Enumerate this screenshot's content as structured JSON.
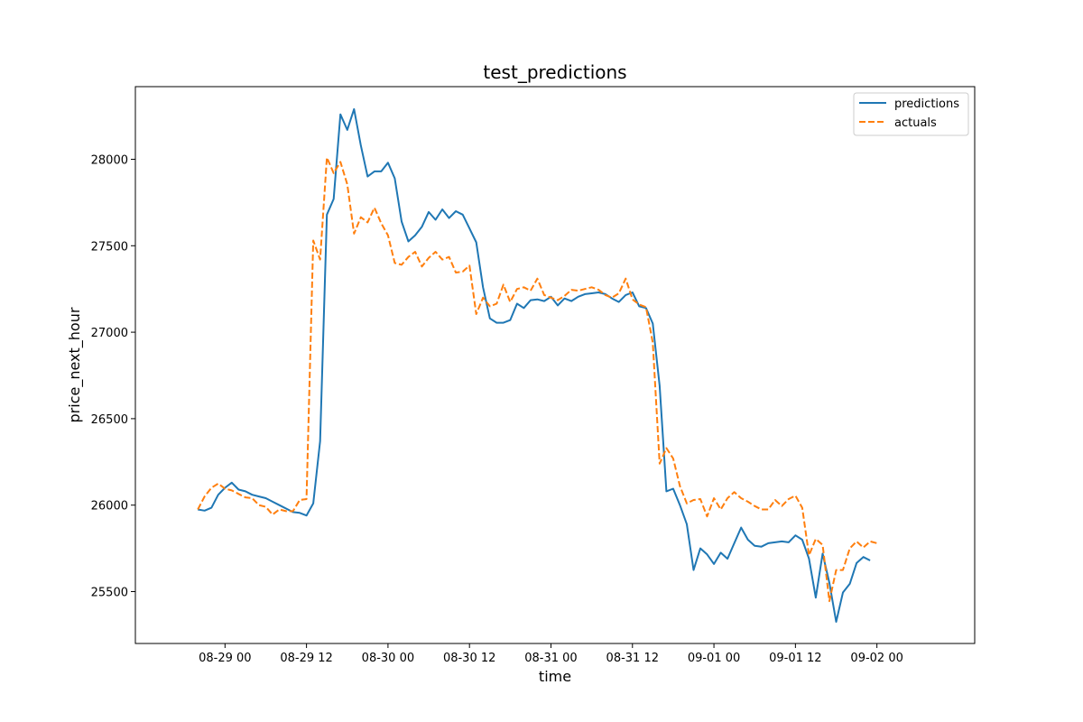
{
  "chart_data": {
    "type": "line",
    "title": "test_predictions",
    "xlabel": "time",
    "ylabel": "price_next_hour",
    "x_range_hours": [
      -13.2,
      110.4
    ],
    "ylim": [
      25200,
      28420
    ],
    "x_ticks": [
      {
        "hours": 0,
        "label": "08-29 00"
      },
      {
        "hours": 12,
        "label": "08-29 12"
      },
      {
        "hours": 24,
        "label": "08-30 00"
      },
      {
        "hours": 36,
        "label": "08-30 12"
      },
      {
        "hours": 48,
        "label": "08-31 00"
      },
      {
        "hours": 60,
        "label": "08-31 12"
      },
      {
        "hours": 72,
        "label": "09-01 00"
      },
      {
        "hours": 84,
        "label": "09-01 12"
      },
      {
        "hours": 96,
        "label": "09-02 00"
      }
    ],
    "y_ticks": [
      25500,
      26000,
      26500,
      27000,
      27500,
      28000
    ],
    "grid": false,
    "legend_position": "upper-right",
    "series": [
      {
        "name": "predictions",
        "color": "#1f77b4",
        "style": "solid",
        "points": [
          [
            -4,
            25975
          ],
          [
            -3,
            25968
          ],
          [
            -2,
            25985
          ],
          [
            -1,
            26060
          ],
          [
            0,
            26100
          ],
          [
            1,
            26130
          ],
          [
            2,
            26090
          ],
          [
            3,
            26080
          ],
          [
            4,
            26060
          ],
          [
            5,
            26050
          ],
          [
            6,
            26040
          ],
          [
            7,
            26020
          ],
          [
            8,
            26000
          ],
          [
            9,
            25980
          ],
          [
            10,
            25960
          ],
          [
            11,
            25955
          ],
          [
            12,
            25940
          ],
          [
            13,
            26010
          ],
          [
            14,
            26370
          ],
          [
            15,
            27680
          ],
          [
            16,
            27770
          ],
          [
            17,
            28260
          ],
          [
            18,
            28170
          ],
          [
            19,
            28290
          ],
          [
            20,
            28080
          ],
          [
            21,
            27900
          ],
          [
            22,
            27930
          ],
          [
            23,
            27930
          ],
          [
            24,
            27980
          ],
          [
            25,
            27890
          ],
          [
            26,
            27640
          ],
          [
            27,
            27525
          ],
          [
            28,
            27560
          ],
          [
            29,
            27610
          ],
          [
            30,
            27695
          ],
          [
            31,
            27650
          ],
          [
            32,
            27710
          ],
          [
            33,
            27660
          ],
          [
            34,
            27700
          ],
          [
            35,
            27680
          ],
          [
            36,
            27600
          ],
          [
            37,
            27520
          ],
          [
            38,
            27260
          ],
          [
            39,
            27080
          ],
          [
            40,
            27055
          ],
          [
            41,
            27055
          ],
          [
            42,
            27070
          ],
          [
            43,
            27165
          ],
          [
            44,
            27140
          ],
          [
            45,
            27185
          ],
          [
            46,
            27190
          ],
          [
            47,
            27180
          ],
          [
            48,
            27205
          ],
          [
            49,
            27155
          ],
          [
            50,
            27195
          ],
          [
            51,
            27180
          ],
          [
            52,
            27205
          ],
          [
            53,
            27220
          ],
          [
            54,
            27225
          ],
          [
            55,
            27230
          ],
          [
            56,
            27220
          ],
          [
            57,
            27195
          ],
          [
            58,
            27175
          ],
          [
            59,
            27215
          ],
          [
            60,
            27230
          ],
          [
            61,
            27150
          ],
          [
            62,
            27140
          ],
          [
            63,
            27050
          ],
          [
            64,
            26690
          ],
          [
            65,
            26080
          ],
          [
            66,
            26095
          ],
          [
            67,
            26000
          ],
          [
            68,
            25890
          ],
          [
            69,
            25625
          ],
          [
            70,
            25750
          ],
          [
            71,
            25715
          ],
          [
            72,
            25660
          ],
          [
            73,
            25725
          ],
          [
            74,
            25690
          ],
          [
            75,
            25780
          ],
          [
            76,
            25870
          ],
          [
            77,
            25800
          ],
          [
            78,
            25765
          ],
          [
            79,
            25760
          ],
          [
            80,
            25780
          ],
          [
            81,
            25785
          ],
          [
            82,
            25790
          ],
          [
            83,
            25785
          ],
          [
            84,
            25825
          ],
          [
            85,
            25800
          ],
          [
            86,
            25690
          ],
          [
            87,
            25465
          ],
          [
            88,
            25720
          ],
          [
            89,
            25550
          ],
          [
            90,
            25325
          ],
          [
            91,
            25495
          ],
          [
            92,
            25545
          ],
          [
            93,
            25665
          ],
          [
            94,
            25700
          ],
          [
            95,
            25680
          ]
        ]
      },
      {
        "name": "actuals",
        "color": "#ff7f0e",
        "style": "dashed",
        "points": [
          [
            -4,
            25975
          ],
          [
            -3,
            26050
          ],
          [
            -2,
            26100
          ],
          [
            -1,
            26125
          ],
          [
            0,
            26095
          ],
          [
            1,
            26085
          ],
          [
            2,
            26065
          ],
          [
            3,
            26045
          ],
          [
            4,
            26040
          ],
          [
            5,
            26000
          ],
          [
            6,
            25990
          ],
          [
            7,
            25945
          ],
          [
            8,
            25975
          ],
          [
            9,
            25965
          ],
          [
            10,
            25965
          ],
          [
            11,
            26030
          ],
          [
            12,
            26035
          ],
          [
            13,
            27530
          ],
          [
            14,
            27420
          ],
          [
            15,
            28010
          ],
          [
            16,
            27920
          ],
          [
            17,
            27985
          ],
          [
            18,
            27855
          ],
          [
            19,
            27570
          ],
          [
            20,
            27665
          ],
          [
            21,
            27635
          ],
          [
            22,
            27720
          ],
          [
            23,
            27630
          ],
          [
            24,
            27560
          ],
          [
            25,
            27400
          ],
          [
            26,
            27390
          ],
          [
            27,
            27435
          ],
          [
            28,
            27465
          ],
          [
            29,
            27380
          ],
          [
            30,
            27430
          ],
          [
            31,
            27465
          ],
          [
            32,
            27420
          ],
          [
            33,
            27435
          ],
          [
            34,
            27345
          ],
          [
            35,
            27350
          ],
          [
            36,
            27385
          ],
          [
            37,
            27105
          ],
          [
            38,
            27200
          ],
          [
            39,
            27150
          ],
          [
            40,
            27165
          ],
          [
            41,
            27275
          ],
          [
            42,
            27175
          ],
          [
            43,
            27250
          ],
          [
            44,
            27260
          ],
          [
            45,
            27240
          ],
          [
            46,
            27310
          ],
          [
            47,
            27215
          ],
          [
            48,
            27200
          ],
          [
            49,
            27185
          ],
          [
            50,
            27210
          ],
          [
            51,
            27245
          ],
          [
            52,
            27240
          ],
          [
            53,
            27250
          ],
          [
            54,
            27260
          ],
          [
            55,
            27245
          ],
          [
            56,
            27215
          ],
          [
            57,
            27200
          ],
          [
            58,
            27225
          ],
          [
            59,
            27310
          ],
          [
            60,
            27190
          ],
          [
            61,
            27160
          ],
          [
            62,
            27145
          ],
          [
            63,
            26940
          ],
          [
            64,
            26240
          ],
          [
            65,
            26330
          ],
          [
            66,
            26270
          ],
          [
            67,
            26110
          ],
          [
            68,
            26010
          ],
          [
            69,
            26030
          ],
          [
            70,
            26035
          ],
          [
            71,
            25935
          ],
          [
            72,
            26040
          ],
          [
            73,
            25975
          ],
          [
            74,
            26040
          ],
          [
            75,
            26075
          ],
          [
            76,
            26040
          ],
          [
            77,
            26020
          ],
          [
            78,
            25995
          ],
          [
            79,
            25975
          ],
          [
            80,
            25975
          ],
          [
            81,
            26030
          ],
          [
            82,
            25995
          ],
          [
            83,
            26035
          ],
          [
            84,
            26055
          ],
          [
            85,
            25985
          ],
          [
            86,
            25710
          ],
          [
            87,
            25805
          ],
          [
            88,
            25770
          ],
          [
            89,
            25445
          ],
          [
            90,
            25625
          ],
          [
            91,
            25625
          ],
          [
            92,
            25750
          ],
          [
            93,
            25790
          ],
          [
            94,
            25755
          ],
          [
            95,
            25790
          ],
          [
            96,
            25780
          ]
        ]
      }
    ]
  }
}
